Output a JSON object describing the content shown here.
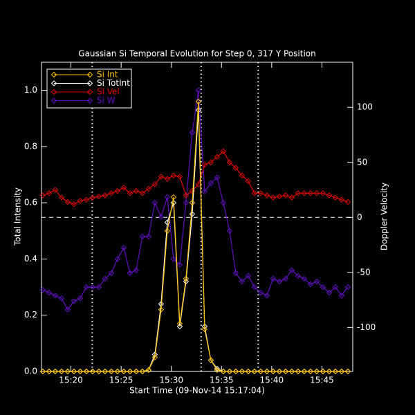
{
  "chart_data": {
    "type": "line",
    "title": "Gaussian Si Temporal Evolution for Step 0, 317 Y Position",
    "x_label": "Start Time (09-Nov-14 15:17:04)",
    "y_label": "Total Intensity",
    "y2_label": "Doppler Velocity",
    "x": [
      17.2,
      17.82,
      18.44,
      19.06,
      19.68,
      20.3,
      20.92,
      21.54,
      22.16,
      22.78,
      23.4,
      24.02,
      24.64,
      25.26,
      25.88,
      26.5,
      27.12,
      27.74,
      28.36,
      28.98,
      29.6,
      30.22,
      30.84,
      31.46,
      32.08,
      32.7,
      33.32,
      33.94,
      34.56,
      35.18,
      35.8,
      36.42,
      37.04,
      37.66,
      38.28,
      38.9,
      39.52,
      40.14,
      40.76,
      41.38,
      42.0,
      42.62,
      43.24,
      43.86,
      44.48,
      45.1,
      45.72,
      46.34,
      46.96,
      47.58
    ],
    "series": [
      {
        "name": "Si Int",
        "color": "#ffc000",
        "values": [
          0,
          0,
          0,
          0,
          0,
          0,
          0,
          0,
          0,
          0,
          0,
          0,
          0,
          0,
          0,
          0,
          0,
          0.005,
          0.05,
          0.22,
          0.5,
          0.62,
          0.17,
          0.33,
          0.6,
          0.96,
          0.15,
          0.04,
          0.005,
          0,
          0,
          0,
          0,
          0,
          0,
          0,
          0,
          0,
          0,
          0,
          0,
          0,
          0,
          0,
          0,
          0,
          0,
          0,
          0,
          0
        ]
      },
      {
        "name": "Si TotInt",
        "color": "#ffffff",
        "values": [
          0,
          0,
          0,
          0,
          0,
          0,
          0,
          0,
          0,
          0,
          0,
          0,
          0,
          0,
          0,
          0,
          0,
          0.005,
          0.06,
          0.24,
          0.53,
          0.6,
          0.16,
          0.32,
          0.56,
          0.93,
          0.16,
          0.04,
          0.01,
          0,
          0,
          0,
          0,
          0,
          0,
          0,
          0,
          0,
          0,
          0,
          0,
          0,
          0,
          0,
          0,
          0,
          0,
          0,
          0,
          0
        ]
      },
      {
        "name": "Si Vel",
        "color": "#e00000",
        "axis": "y2",
        "values": [
          20,
          22,
          25,
          18,
          14,
          12,
          15,
          16,
          18,
          19,
          20,
          22,
          24,
          27,
          22,
          24,
          22,
          26,
          30,
          37,
          35,
          38,
          37,
          20,
          24,
          30,
          48,
          50,
          55,
          60,
          50,
          45,
          38,
          33,
          22,
          22,
          20,
          18,
          19,
          20,
          18,
          22,
          22,
          22,
          22,
          22,
          20,
          18,
          16,
          14
        ]
      },
      {
        "name": "Si W",
        "color": "#6010c0",
        "values": [
          0.29,
          0.28,
          0.27,
          0.26,
          0.22,
          0.25,
          0.26,
          0.3,
          0.3,
          0.3,
          0.33,
          0.35,
          0.4,
          0.44,
          0.35,
          0.36,
          0.48,
          0.48,
          0.6,
          0.55,
          0.62,
          0.4,
          0.38,
          0.6,
          0.85,
          1.0,
          0.64,
          0.67,
          0.69,
          0.6,
          0.5,
          0.35,
          0.32,
          0.34,
          0.3,
          0.28,
          0.27,
          0.33,
          0.32,
          0.33,
          0.36,
          0.34,
          0.33,
          0.31,
          0.32,
          0.3,
          0.28,
          0.3,
          0.27,
          0.3
        ]
      }
    ],
    "xlim": [
      17.07,
      48.07
    ],
    "xticks": [
      {
        "value": 20,
        "label": "15:20"
      },
      {
        "value": 25,
        "label": "15:25"
      },
      {
        "value": 30,
        "label": "15:30"
      },
      {
        "value": 35,
        "label": "15:35"
      },
      {
        "value": 40,
        "label": "15:40"
      },
      {
        "value": 45,
        "label": "15:45"
      }
    ],
    "ylim": [
      0,
      1.1
    ],
    "yticks": [
      {
        "value": 0,
        "label": "0.0"
      },
      0.2,
      0.4,
      0.6,
      0.8,
      {
        "value": 1,
        "label": "1.0"
      }
    ],
    "y2lim": [
      -140,
      141
    ],
    "y2ticks": [
      -100,
      -50,
      0,
      50,
      100
    ],
    "vlines": [
      22.12,
      32.97,
      38.65
    ],
    "hline_y2": 0,
    "legend": "upper left"
  }
}
